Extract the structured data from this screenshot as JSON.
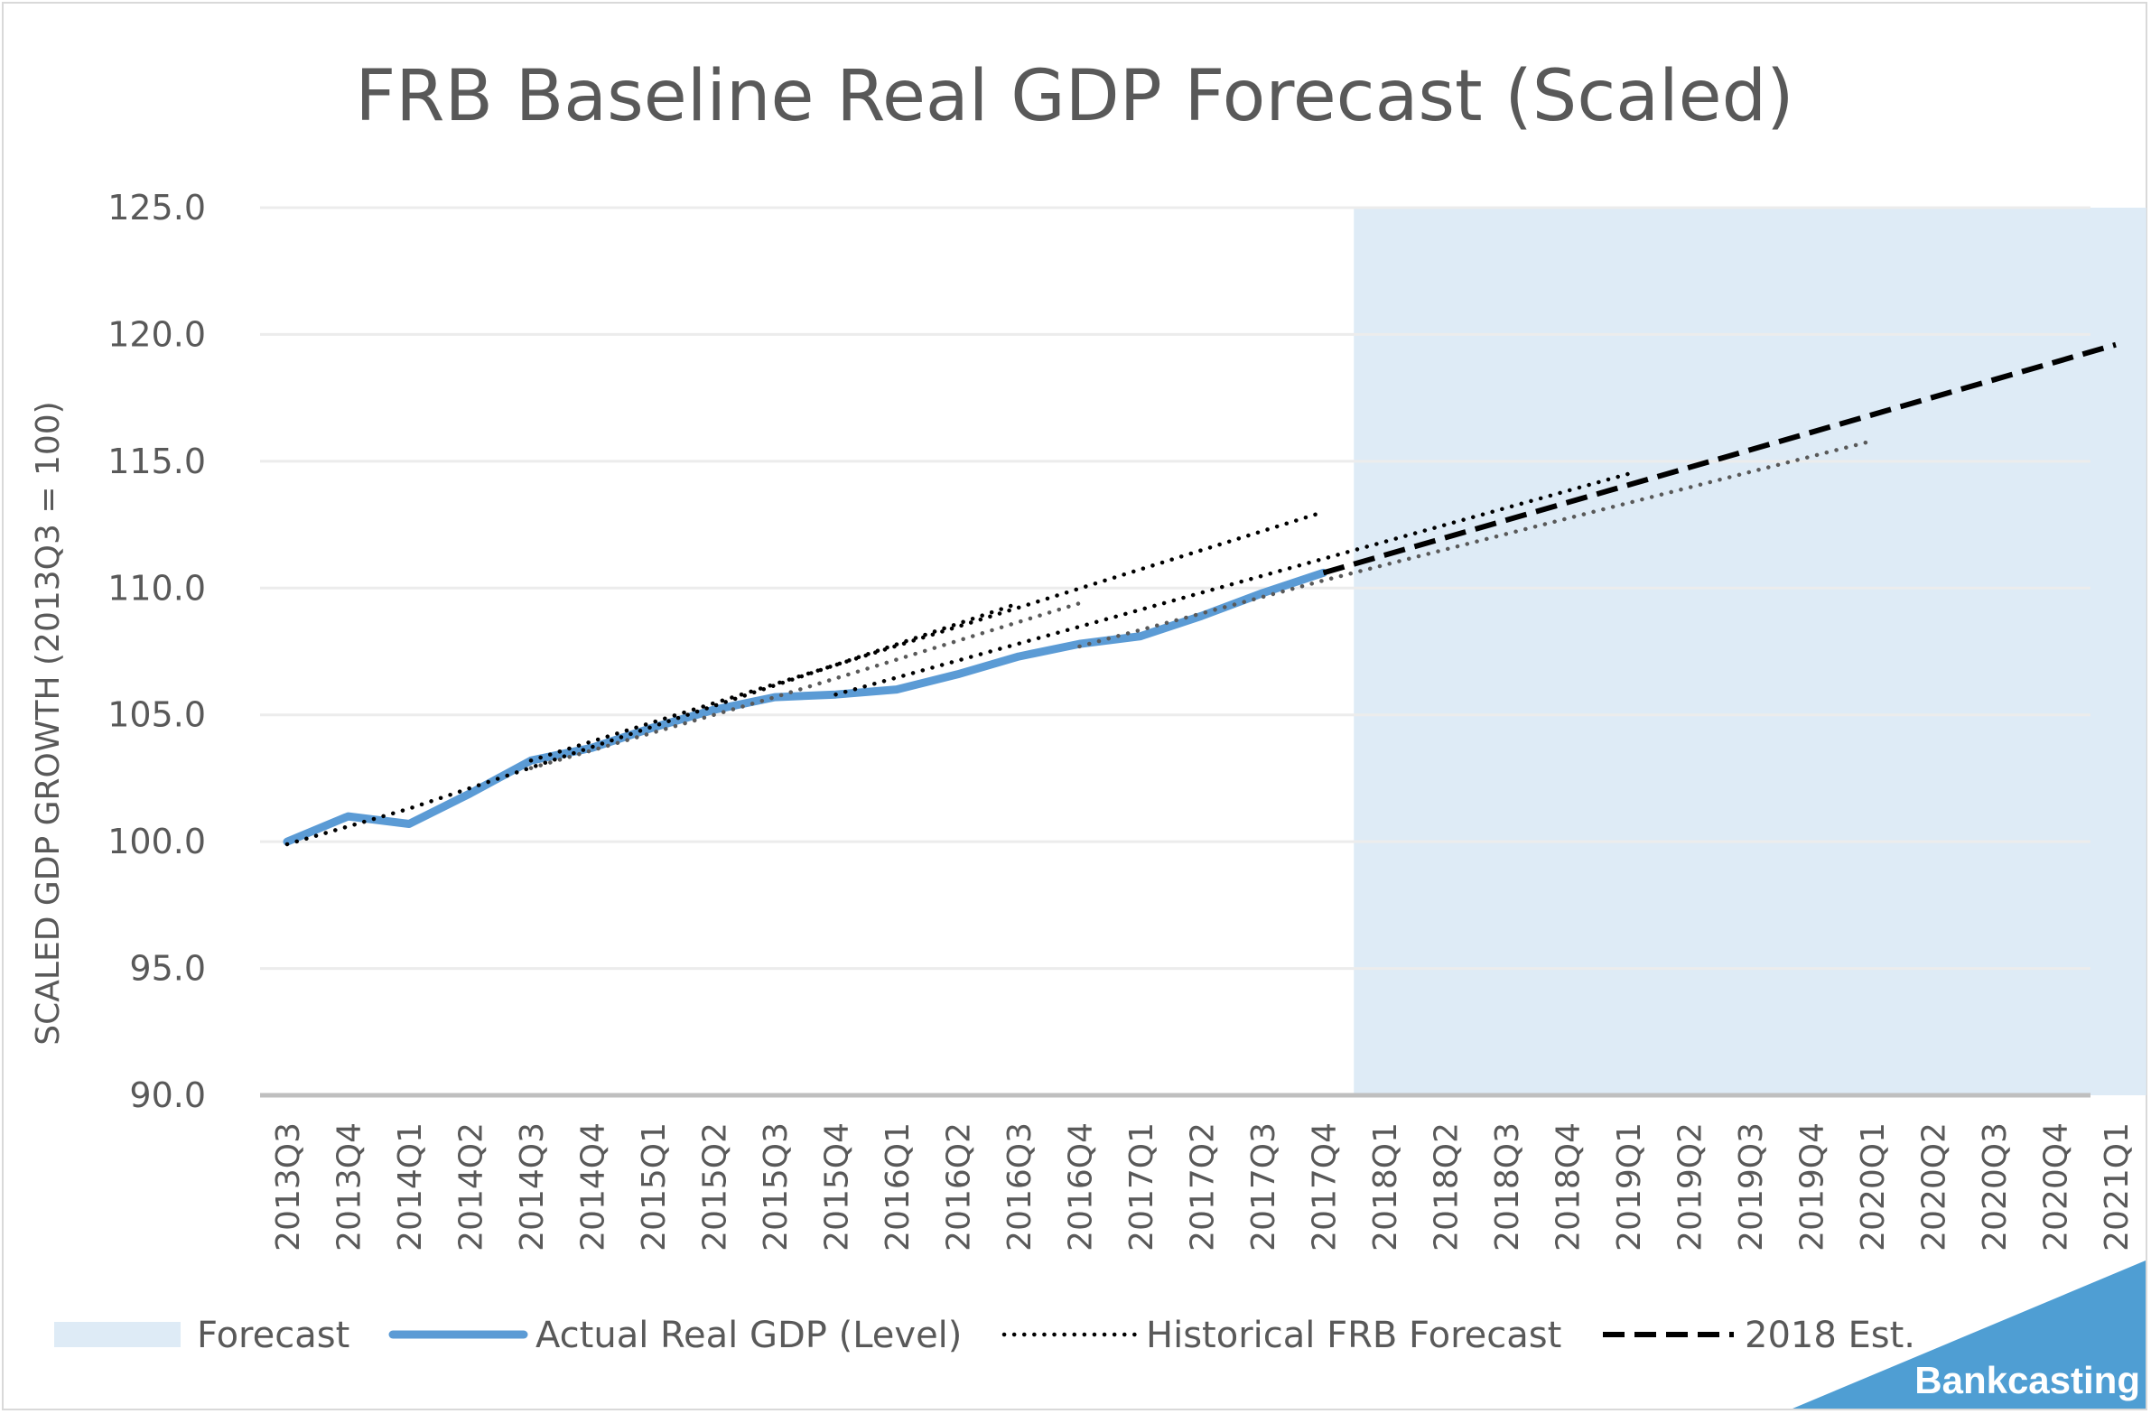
{
  "chart_data": {
    "type": "line",
    "title": "FRB Baseline Real GDP Forecast (Scaled)",
    "ylabel": "SCALED GDP GROWTH (2013Q3 = 100)",
    "xlabel": "",
    "ylim": [
      90,
      125
    ],
    "yticks": [
      "90.0",
      "95.0",
      "100.0",
      "105.0",
      "110.0",
      "115.0",
      "120.0",
      "125.0"
    ],
    "categories": [
      "2013Q3",
      "2013Q4",
      "2014Q1",
      "2014Q2",
      "2014Q3",
      "2014Q4",
      "2015Q1",
      "2015Q2",
      "2015Q3",
      "2015Q4",
      "2016Q1",
      "2016Q2",
      "2016Q3",
      "2016Q4",
      "2017Q1",
      "2017Q2",
      "2017Q3",
      "2017Q4",
      "2018Q1",
      "2018Q2",
      "2018Q3",
      "2018Q4",
      "2019Q1",
      "2019Q2",
      "2019Q3",
      "2019Q4",
      "2020Q1",
      "2020Q2",
      "2020Q3",
      "2020Q4",
      "2021Q1"
    ],
    "grid": true,
    "legend_position": "bottom",
    "forecast_region": {
      "from": "2018Q1",
      "to": "2021Q1",
      "color": "#deebf6"
    },
    "series": [
      {
        "name": "Actual Real GDP (Level)",
        "style": "solid",
        "color": "#5b9bd5",
        "points": [
          [
            "2013Q3",
            100.0
          ],
          [
            "2013Q4",
            101.0
          ],
          [
            "2014Q1",
            100.7
          ],
          [
            "2014Q2",
            101.9
          ],
          [
            "2014Q3",
            103.2
          ],
          [
            "2014Q4",
            103.7
          ],
          [
            "2015Q1",
            104.5
          ],
          [
            "2015Q2",
            105.2
          ],
          [
            "2015Q3",
            105.7
          ],
          [
            "2015Q4",
            105.8
          ],
          [
            "2016Q1",
            106.0
          ],
          [
            "2016Q2",
            106.6
          ],
          [
            "2016Q3",
            107.3
          ],
          [
            "2016Q4",
            107.8
          ],
          [
            "2017Q1",
            108.1
          ],
          [
            "2017Q2",
            108.9
          ],
          [
            "2017Q3",
            109.8
          ],
          [
            "2017Q4",
            110.6
          ]
        ]
      },
      {
        "name": "Historical FRB Forecast",
        "style": "dotted",
        "color": "#000000",
        "points": [
          [
            "2013Q3",
            99.9
          ],
          [
            "2014Q1",
            101.3
          ],
          [
            "2016Q3",
            109.4
          ]
        ]
      },
      {
        "name": "",
        "style": "dotted",
        "color": "#000000",
        "points": [
          [
            "2014Q3",
            103.2
          ],
          [
            "2017Q4",
            113.0
          ]
        ]
      },
      {
        "name": "",
        "style": "dotted",
        "color": "#595959",
        "points": [
          [
            "2014Q3",
            102.9
          ],
          [
            "2015Q3",
            105.7
          ],
          [
            "2016Q4",
            109.4
          ]
        ]
      },
      {
        "name": "",
        "style": "dotted",
        "color": "#000000",
        "points": [
          [
            "2015Q4",
            105.8
          ],
          [
            "2019Q1",
            114.5
          ]
        ]
      },
      {
        "name": "",
        "style": "dotted",
        "color": "#595959",
        "points": [
          [
            "2016Q4",
            107.7
          ],
          [
            "2017Q4",
            110.3
          ],
          [
            "2020Q1",
            115.8
          ]
        ]
      },
      {
        "name": "2018 Est.",
        "style": "dashed",
        "color": "#000000",
        "points": [
          [
            "2017Q4",
            110.6
          ],
          [
            "2021Q1",
            119.6
          ]
        ]
      }
    ],
    "legend": [
      {
        "label": "Forecast",
        "kind": "area",
        "color": "#deebf6"
      },
      {
        "label": "Actual Real GDP (Level)",
        "kind": "solid",
        "color": "#5b9bd5"
      },
      {
        "label": "Historical FRB Forecast",
        "kind": "dotted",
        "color": "#000000"
      },
      {
        "label": "2018 Est.",
        "kind": "dashed",
        "color": "#000000"
      }
    ]
  },
  "branding": {
    "text": "Bankcasting",
    "color": "#4f9ed3"
  }
}
